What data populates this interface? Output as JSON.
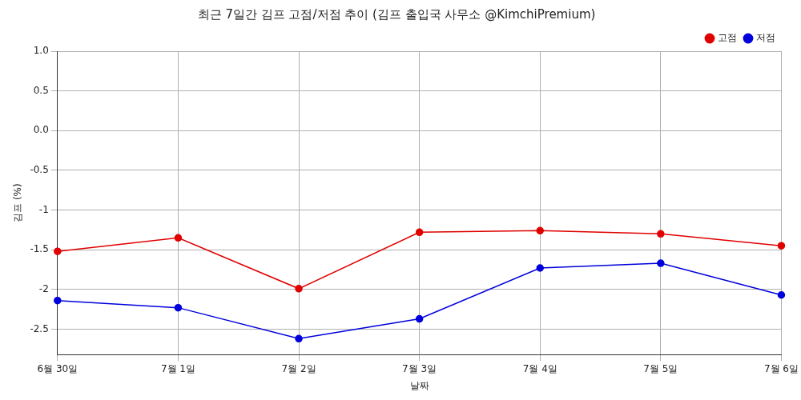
{
  "chart_data": {
    "type": "line",
    "title": "최근 7일간 김프 고점/저점 추이 (김프 출입국 사무소 @KimchiPremium)",
    "x_label": "날짜",
    "y_label": "김프 (%)",
    "categories": [
      "6월 30일",
      "7월 1일",
      "7월 2일",
      "7월 3일",
      "7월 4일",
      "7월 5일",
      "7월 6일"
    ],
    "series": [
      {
        "name": "고점",
        "color": "#e00000",
        "marker": "o",
        "line_style": "solid",
        "values": [
          -1.52,
          -1.35,
          -1.99,
          -1.28,
          -1.26,
          -1.3,
          -1.45
        ]
      },
      {
        "name": "저점",
        "color": "#0000dd",
        "marker": "o",
        "line_style": "solid",
        "values": [
          -2.14,
          -2.23,
          -2.62,
          -2.37,
          -1.73,
          -1.67,
          -2.07
        ]
      }
    ],
    "ylim": [
      -2.82,
      1.0
    ],
    "yticks": [
      -2.5,
      -2,
      -1.5,
      -1,
      -0.5,
      {
        "value": 0,
        "label": "0.0"
      },
      0.5,
      {
        "value": 1,
        "label": "1.0"
      }
    ],
    "grid": true,
    "legend": "upper right"
  }
}
